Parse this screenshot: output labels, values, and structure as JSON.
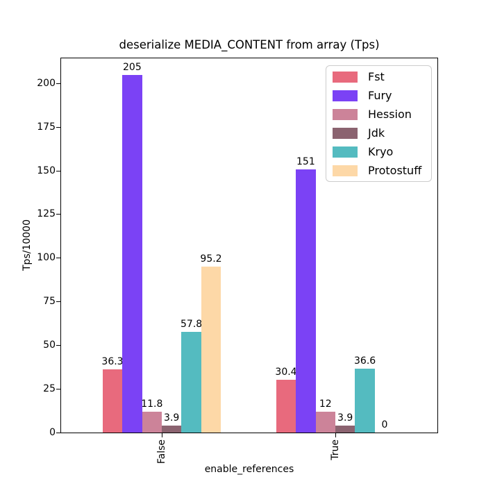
{
  "chart_data": {
    "type": "bar",
    "title": "deserialize MEDIA_CONTENT from array (Tps)",
    "xlabel": "enable_references",
    "ylabel": "Tps/10000",
    "categories": [
      "False",
      "True"
    ],
    "series": [
      {
        "name": "Fst",
        "color": "#E86A7D",
        "values": [
          36.3,
          30.4
        ]
      },
      {
        "name": "Fury",
        "color": "#7B42F5",
        "values": [
          205,
          151
        ]
      },
      {
        "name": "Hession",
        "color": "#CC8399",
        "values": [
          11.8,
          12
        ]
      },
      {
        "name": "Jdk",
        "color": "#8B6370",
        "values": [
          3.9,
          3.9
        ]
      },
      {
        "name": "Kryo",
        "color": "#54BBC0",
        "values": [
          57.8,
          36.6
        ]
      },
      {
        "name": "Protostuff",
        "color": "#FDD8A7",
        "values": [
          95.2,
          0
        ]
      }
    ],
    "bar_value_labels": [
      [
        "36.3",
        "205",
        "11.8",
        "3.9",
        "57.8",
        "95.2"
      ],
      [
        "30.4",
        "151",
        "12",
        "3.9",
        "36.6",
        "0"
      ]
    ],
    "y_ticks": [
      0,
      25,
      50,
      75,
      100,
      125,
      150,
      175,
      200
    ],
    "ylim": [
      0,
      214.5
    ],
    "grid": false,
    "legend": {
      "position": "upper right",
      "entries": [
        "Fst",
        "Fury",
        "Hession",
        "Jdk",
        "Kryo",
        "Protostuff"
      ]
    },
    "axis_color": "#000000",
    "background_color": "#ffffff"
  }
}
